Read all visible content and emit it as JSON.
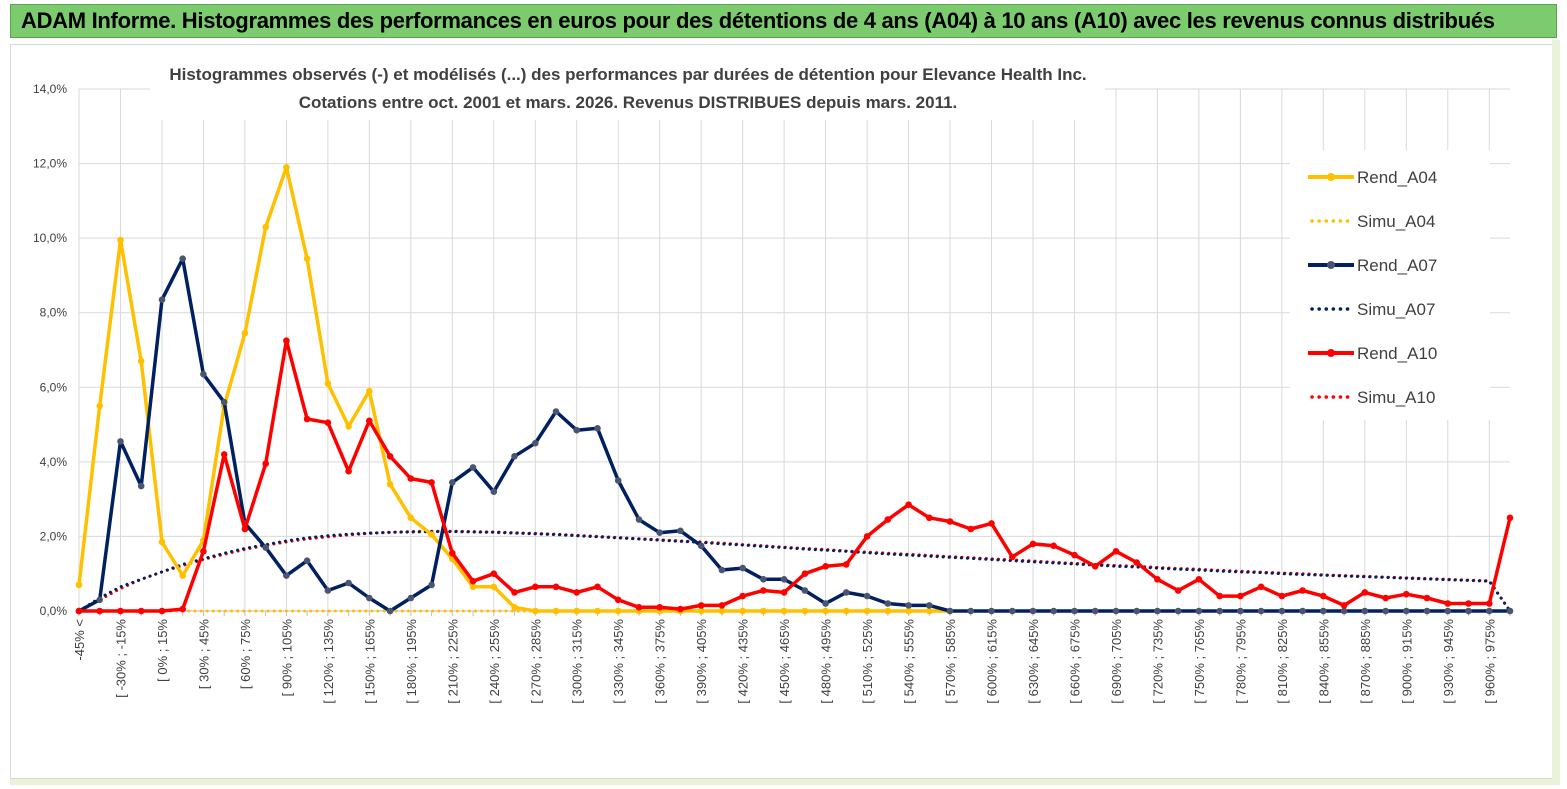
{
  "banner": {
    "title": "ADAM Informe. Histogrammes des performances en euros pour des détentions de 4 ans (A04) à 10 ans (A10) avec les revenus connus distribués"
  },
  "chart_data": {
    "type": "line",
    "title_line1": "Histogrammes observés (-) et modélisés (...) des performances par durées de détention pour Elevance Health Inc.",
    "title_line2": "Cotations entre oct. 2001 et mars. 2026. Revenus DISTRIBUES depuis mars. 2011.",
    "ylim": [
      0,
      14
    ],
    "yticks": [
      "0,0%",
      "2,0%",
      "4,0%",
      "6,0%",
      "8,0%",
      "10,0%",
      "12,0%",
      "14,0%"
    ],
    "category_labels": [
      "-45% <",
      "[ -30% ; -15%",
      "[ 0% ; 15%",
      "[ 30% ; 45%",
      "[ 60% ; 75%",
      "[ 90% ; 105%",
      "[ 120% ; 135%",
      "[ 150% ; 165%",
      "[ 180% ; 195%",
      "[ 210% ; 225%",
      "[ 240% ; 255%",
      "[ 270% ; 285%",
      "[ 300% ; 315%",
      "[ 330% ; 345%",
      "[ 360% ; 375%",
      "[ 390% ; 405%",
      "[ 420% ; 435%",
      "[ 450% ; 465%",
      "[ 480% ; 495%",
      "[ 510% ; 525%",
      "[ 540% ; 555%",
      "[ 570% ; 585%",
      "[ 600% ; 615%",
      "[ 630% ; 645%",
      "[ 660% ; 675%",
      "[ 690% ; 705%",
      "[ 720% ; 735%",
      "[ 750% ; 765%",
      "[ 780% ; 795%",
      "[ 810% ; 825%",
      "[ 840% ; 855%",
      "[ 870% ; 885%",
      "[ 900% ; 915%",
      "[ 930% ; 945%",
      "[ 960% ; 975%"
    ],
    "series": [
      {
        "name": "Rend_A04",
        "style": "solid",
        "color": "#ffc000",
        "values": [
          0.7,
          5.5,
          9.95,
          6.7,
          1.85,
          0.95,
          1.9,
          5.5,
          7.45,
          10.3,
          11.9,
          9.45,
          6.1,
          4.95,
          5.9,
          3.4,
          2.5,
          2.05,
          1.4,
          0.65,
          0.65,
          0.1,
          0.0,
          0.0,
          0.0,
          0.0,
          0.0,
          0.0,
          0.0,
          0.0,
          0.0,
          0.0,
          0.0,
          0.0,
          0.0,
          0.0,
          0.0,
          0.0,
          0.0,
          0.0,
          0.0,
          0.0,
          0.0
        ]
      },
      {
        "name": "Simu_A04",
        "style": "dotted",
        "color": "#ffc000",
        "values": [
          0.0,
          0.0,
          0.0,
          0.0,
          0.0,
          0.0,
          0.0,
          0.0,
          0.0,
          0.0,
          0.0,
          0.0,
          0.0,
          0.0,
          0.0,
          0.0,
          0.0,
          0.0,
          0.0,
          0.0,
          0.0,
          0.0,
          0.0,
          0.0,
          0.0,
          0.0,
          0.0,
          0.0,
          0.0,
          0.0,
          0.0,
          0.0,
          0.0,
          0.0,
          0.0,
          0.0,
          0.0,
          0.0,
          0.0,
          0.0,
          0.0,
          0.0,
          0.0
        ]
      },
      {
        "name": "Rend_A07",
        "style": "solid",
        "color": "#002060",
        "values": [
          0.0,
          0.3,
          4.55,
          3.35,
          8.35,
          9.45,
          6.35,
          5.6,
          2.35,
          1.7,
          0.95,
          1.35,
          0.55,
          0.75,
          0.35,
          0.0,
          0.35,
          0.7,
          3.45,
          3.85,
          3.2,
          4.15,
          4.5,
          5.35,
          4.85,
          4.9,
          3.5,
          2.45,
          2.1,
          2.15,
          1.75,
          1.1,
          1.15,
          0.85,
          0.85,
          0.55,
          0.2,
          0.5,
          0.4,
          0.2,
          0.15,
          0.15,
          0.0,
          0.0,
          0.0,
          0.0,
          0.0,
          0.0,
          0.0,
          0.0,
          0.0,
          0.0,
          0.0,
          0.0,
          0.0,
          0.0,
          0.0,
          0.0,
          0.0,
          0.0,
          0.0,
          0.0,
          0.0,
          0.0,
          0.0,
          0.0,
          0.0,
          0.0,
          0.0,
          0.0
        ]
      },
      {
        "name": "Simu_A07",
        "style": "dotted",
        "color": "#002060",
        "values": [
          0.0,
          0.35,
          0.65,
          0.85,
          1.05,
          1.25,
          1.4,
          1.55,
          1.68,
          1.78,
          1.88,
          1.96,
          2.02,
          2.06,
          2.09,
          2.11,
          2.12,
          2.13,
          2.13,
          2.12,
          2.11,
          2.09,
          2.07,
          2.05,
          2.02,
          1.99,
          1.96,
          1.93,
          1.9,
          1.87,
          1.84,
          1.8,
          1.77,
          1.73,
          1.7,
          1.66,
          1.63,
          1.6,
          1.56,
          1.53,
          1.5,
          1.47,
          1.44,
          1.41,
          1.38,
          1.35,
          1.32,
          1.29,
          1.26,
          1.23,
          1.2,
          1.18,
          1.15,
          1.12,
          1.1,
          1.07,
          1.05,
          1.03,
          1.0,
          0.98,
          0.96,
          0.94,
          0.92,
          0.9,
          0.88,
          0.86,
          0.84,
          0.82,
          0.8,
          0.0
        ]
      },
      {
        "name": "Rend_A10",
        "style": "solid",
        "color": "#ff0000",
        "values": [
          0.0,
          0.0,
          0.0,
          0.0,
          0.0,
          0.05,
          1.6,
          4.2,
          2.2,
          3.95,
          7.25,
          5.15,
          5.05,
          3.75,
          5.1,
          4.15,
          3.55,
          3.45,
          1.55,
          0.8,
          1.0,
          0.5,
          0.65,
          0.65,
          0.5,
          0.65,
          0.3,
          0.1,
          0.1,
          0.05,
          0.15,
          0.15,
          0.4,
          0.55,
          0.5,
          1.0,
          1.2,
          1.25,
          2.0,
          2.45,
          2.85,
          2.5,
          2.4,
          2.2,
          2.35,
          1.45,
          1.8,
          1.75,
          1.5,
          1.2,
          1.6,
          1.3,
          0.85,
          0.55,
          0.85,
          0.4,
          0.4,
          0.65,
          0.4,
          0.55,
          0.4,
          0.15,
          0.5,
          0.35,
          0.45,
          0.35,
          0.2,
          0.2,
          0.2,
          2.5
        ]
      },
      {
        "name": "Simu_A10",
        "style": "dotted",
        "color": "#ff0000",
        "values": [
          0.0,
          0.3,
          0.6,
          0.85,
          1.05,
          1.22,
          1.38,
          1.52,
          1.65,
          1.76,
          1.85,
          1.93,
          1.99,
          2.04,
          2.08,
          2.11,
          2.13,
          2.14,
          2.14,
          2.13,
          2.12,
          2.1,
          2.08,
          2.06,
          2.03,
          2.0,
          1.97,
          1.94,
          1.91,
          1.88,
          1.85,
          1.82,
          1.78,
          1.75,
          1.71,
          1.68,
          1.65,
          1.61,
          1.58,
          1.55,
          1.52,
          1.49,
          1.46,
          1.43,
          1.4,
          1.37,
          1.34,
          1.31,
          1.28,
          1.25,
          1.22,
          1.2,
          1.17,
          1.14,
          1.12,
          1.09,
          1.07,
          1.04,
          1.02,
          1.0,
          0.97,
          0.95,
          0.93,
          0.91,
          0.89,
          0.87,
          0.85,
          0.83,
          0.81,
          0.0
        ]
      }
    ],
    "legend": [
      "Rend_A04",
      "Simu_A04",
      "Rend_A07",
      "Simu_A07",
      "Rend_A10",
      "Simu_A10"
    ]
  }
}
